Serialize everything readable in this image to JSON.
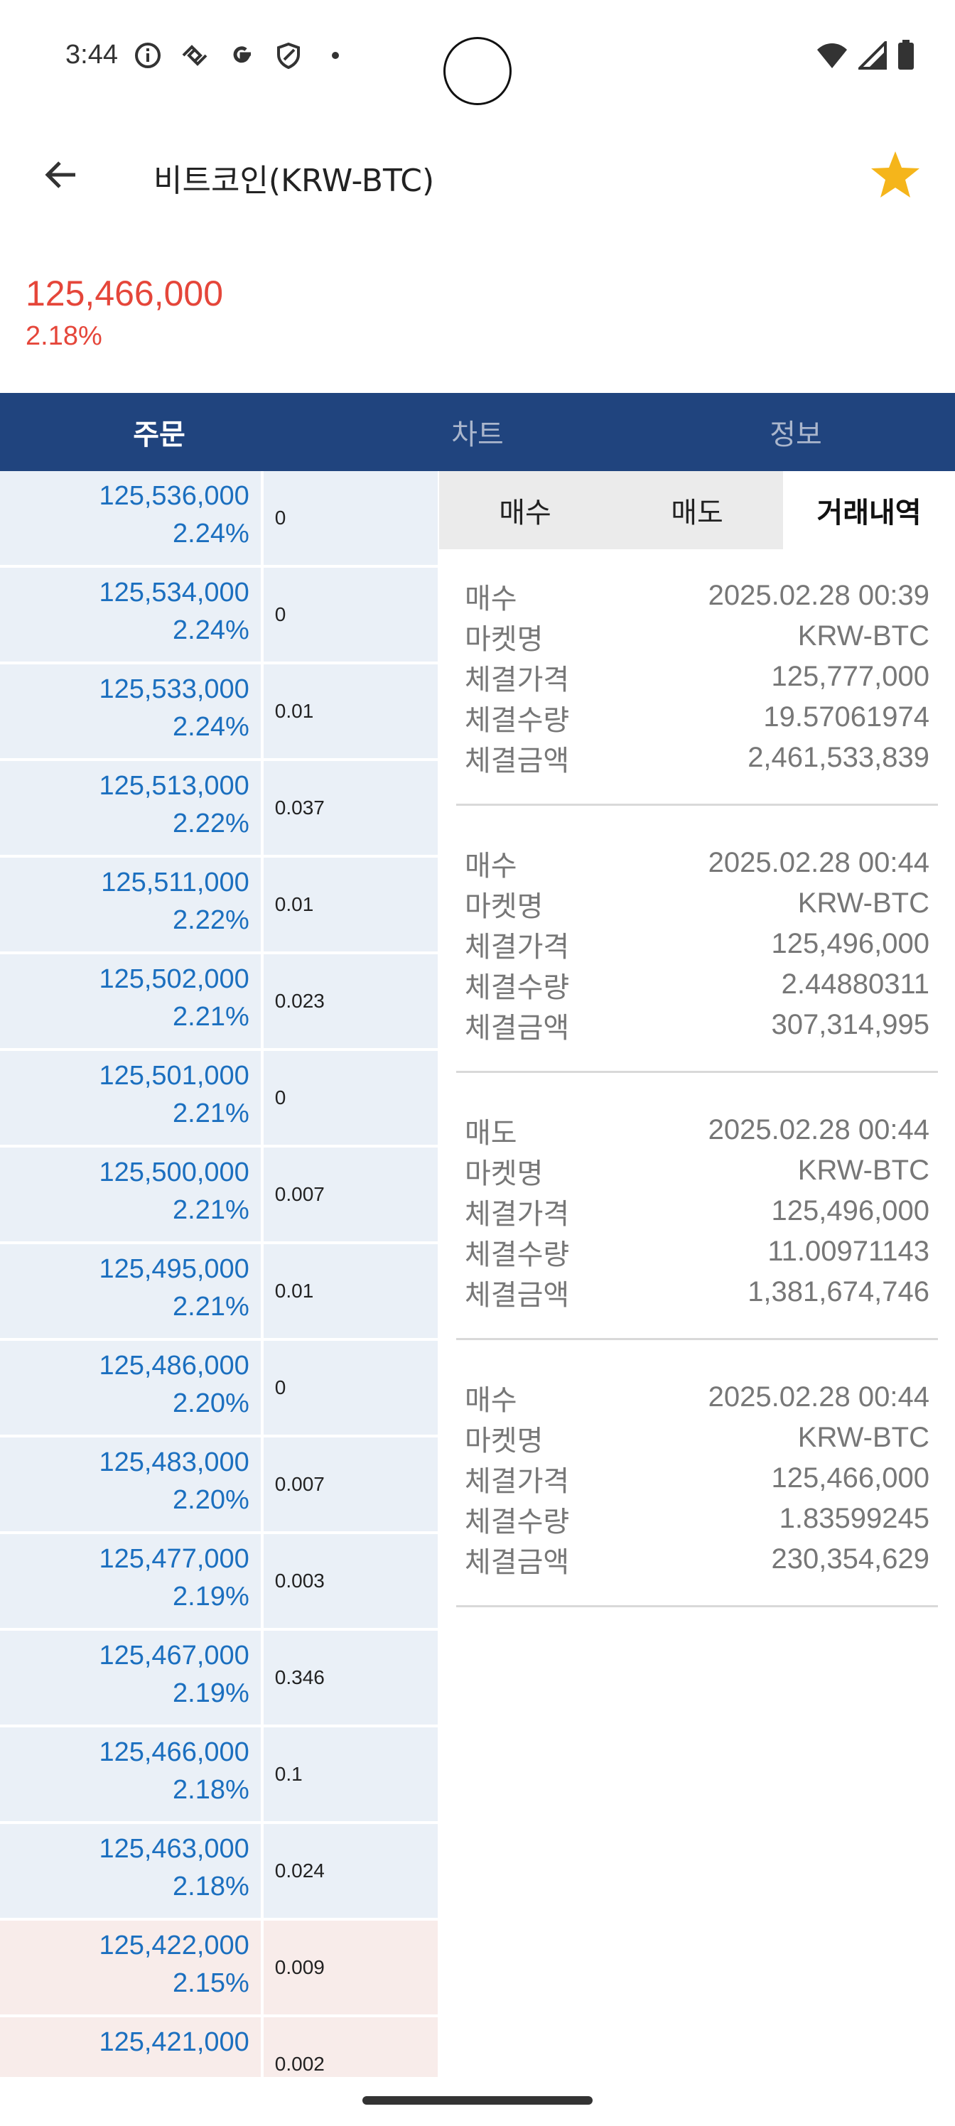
{
  "status": {
    "time": "3:44",
    "left_icons": [
      "info-icon",
      "link-icon",
      "google-icon",
      "shield-icon",
      "dot-icon"
    ],
    "right_icons": [
      "wifi-icon",
      "signal-icon",
      "battery-icon"
    ]
  },
  "appbar": {
    "title": "비트코인(KRW-BTC)",
    "back_icon": "back-arrow-icon",
    "favorite_icon": "star-icon",
    "star_color": "#f5b51b"
  },
  "quote": {
    "price": "125,466,000",
    "change": "2.18%",
    "color": "#e5463a"
  },
  "tabs": [
    {
      "label": "주문",
      "active": true
    },
    {
      "label": "차트",
      "active": false
    },
    {
      "label": "정보",
      "active": false
    }
  ],
  "orderbook": [
    {
      "price": "125,536,000",
      "rate": "2.24%",
      "qty": "0",
      "side": "ask"
    },
    {
      "price": "125,534,000",
      "rate": "2.24%",
      "qty": "0",
      "side": "ask"
    },
    {
      "price": "125,533,000",
      "rate": "2.24%",
      "qty": "0.01",
      "side": "ask"
    },
    {
      "price": "125,513,000",
      "rate": "2.22%",
      "qty": "0.037",
      "side": "ask"
    },
    {
      "price": "125,511,000",
      "rate": "2.22%",
      "qty": "0.01",
      "side": "ask"
    },
    {
      "price": "125,502,000",
      "rate": "2.21%",
      "qty": "0.023",
      "side": "ask"
    },
    {
      "price": "125,501,000",
      "rate": "2.21%",
      "qty": "0",
      "side": "ask"
    },
    {
      "price": "125,500,000",
      "rate": "2.21%",
      "qty": "0.007",
      "side": "ask"
    },
    {
      "price": "125,495,000",
      "rate": "2.21%",
      "qty": "0.01",
      "side": "ask"
    },
    {
      "price": "125,486,000",
      "rate": "2.20%",
      "qty": "0",
      "side": "ask"
    },
    {
      "price": "125,483,000",
      "rate": "2.20%",
      "qty": "0.007",
      "side": "ask"
    },
    {
      "price": "125,477,000",
      "rate": "2.19%",
      "qty": "0.003",
      "side": "ask"
    },
    {
      "price": "125,467,000",
      "rate": "2.19%",
      "qty": "0.346",
      "side": "ask"
    },
    {
      "price": "125,466,000",
      "rate": "2.18%",
      "qty": "0.1",
      "side": "ask"
    },
    {
      "price": "125,463,000",
      "rate": "2.18%",
      "qty": "0.024",
      "side": "ask"
    },
    {
      "price": "125,422,000",
      "rate": "2.15%",
      "qty": "0.009",
      "side": "bid"
    },
    {
      "price": "125,421,000",
      "rate": "",
      "qty": "0.002",
      "side": "bid"
    }
  ],
  "subtabs": [
    {
      "label": "매수",
      "active": false
    },
    {
      "label": "매도",
      "active": false
    },
    {
      "label": "거래내역",
      "active": true
    }
  ],
  "trade_labels": {
    "market": "마켓명",
    "price": "체결가격",
    "volume": "체결수량",
    "amount": "체결금액"
  },
  "trades": [
    {
      "type": "매수",
      "datetime": "2025.02.28 00:39",
      "market": "KRW-BTC",
      "price": "125,777,000",
      "volume": "19.57061974",
      "amount": "2,461,533,839"
    },
    {
      "type": "매수",
      "datetime": "2025.02.28 00:44",
      "market": "KRW-BTC",
      "price": "125,496,000",
      "volume": "2.44880311",
      "amount": "307,314,995"
    },
    {
      "type": "매도",
      "datetime": "2025.02.28 00:44",
      "market": "KRW-BTC",
      "price": "125,496,000",
      "volume": "11.00971143",
      "amount": "1,381,674,746"
    },
    {
      "type": "매수",
      "datetime": "2025.02.28 00:44",
      "market": "KRW-BTC",
      "price": "125,466,000",
      "volume": "1.83599245",
      "amount": "230,354,629"
    }
  ]
}
